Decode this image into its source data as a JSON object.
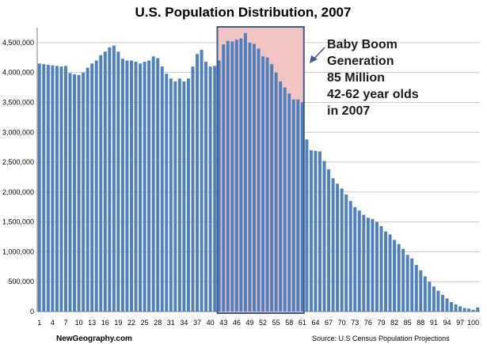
{
  "chart_data": {
    "type": "bar",
    "title": "U.S. Population Distribution, 2007",
    "xlabel": "",
    "ylabel": "",
    "ylim": [
      0,
      4750000
    ],
    "grid": true,
    "legend": "none",
    "bar_color": "#4f81bd",
    "highlight_fill": "#f2c4c4",
    "highlight_border": "#385d8a",
    "categories": [
      1,
      2,
      3,
      4,
      5,
      6,
      7,
      8,
      9,
      10,
      11,
      12,
      13,
      14,
      15,
      16,
      17,
      18,
      19,
      20,
      21,
      22,
      23,
      24,
      25,
      26,
      27,
      28,
      29,
      30,
      31,
      32,
      33,
      34,
      35,
      36,
      37,
      38,
      39,
      40,
      41,
      42,
      43,
      44,
      45,
      46,
      47,
      48,
      49,
      50,
      51,
      52,
      53,
      54,
      55,
      56,
      57,
      58,
      59,
      60,
      61,
      62,
      63,
      64,
      65,
      66,
      67,
      68,
      69,
      70,
      71,
      72,
      73,
      74,
      75,
      76,
      77,
      78,
      79,
      80,
      81,
      82,
      83,
      84,
      85,
      86,
      87,
      88,
      89,
      90,
      91,
      92,
      93,
      94,
      95,
      96,
      97,
      98,
      99,
      100,
      101
    ],
    "values": [
      4150000,
      4140000,
      4130000,
      4120000,
      4110000,
      4100000,
      4110000,
      3990000,
      3970000,
      3960000,
      4000000,
      4080000,
      4150000,
      4200000,
      4290000,
      4350000,
      4420000,
      4450000,
      4350000,
      4230000,
      4200000,
      4200000,
      4180000,
      4150000,
      4180000,
      4200000,
      4270000,
      4240000,
      4100000,
      3980000,
      3900000,
      3850000,
      3900000,
      3850000,
      3900000,
      4100000,
      4310000,
      4380000,
      4180000,
      4100000,
      4110000,
      4200000,
      4470000,
      4530000,
      4520000,
      4550000,
      4570000,
      4660000,
      4500000,
      4480000,
      4400000,
      4270000,
      4250000,
      4140000,
      4000000,
      3850000,
      3750000,
      3650000,
      3550000,
      3550000,
      3500000,
      2880000,
      2700000,
      2690000,
      2680000,
      2520000,
      2380000,
      2230000,
      2140000,
      2060000,
      1960000,
      1850000,
      1750000,
      1690000,
      1620000,
      1570000,
      1550000,
      1500000,
      1430000,
      1340000,
      1290000,
      1200000,
      1130000,
      1050000,
      950000,
      890000,
      780000,
      690000,
      590000,
      500000,
      420000,
      350000,
      280000,
      220000,
      160000,
      120000,
      90000,
      60000,
      50000,
      30000,
      70000
    ],
    "y_tick_labels": [
      "0",
      "500,000",
      "1,000,000",
      "1,500,000",
      "2,000,000",
      "2,500,000",
      "3,000,000",
      "3,500,000",
      "4,000,000",
      "4,500,000"
    ],
    "y_tick_values": [
      0,
      500000,
      1000000,
      1500000,
      2000000,
      2500000,
      3000000,
      3500000,
      4000000,
      4500000
    ],
    "x_tick_labels": [
      "1",
      "4",
      "7",
      "10",
      "13",
      "16",
      "19",
      "22",
      "25",
      "28",
      "31",
      "34",
      "37",
      "40",
      "43",
      "46",
      "49",
      "52",
      "55",
      "58",
      "61",
      "64",
      "67",
      "70",
      "73",
      "76",
      "79",
      "82",
      "85",
      "88",
      "91",
      "94",
      "97",
      "100"
    ],
    "highlight_range": [
      42,
      61
    ],
    "annotation_lines": [
      "Baby Boom",
      "Generation",
      "85 Million",
      "42-62 year olds",
      "in 2007"
    ]
  },
  "footer": {
    "left": "NewGeography.com",
    "right": "Source: U.S Census Population Projections"
  }
}
